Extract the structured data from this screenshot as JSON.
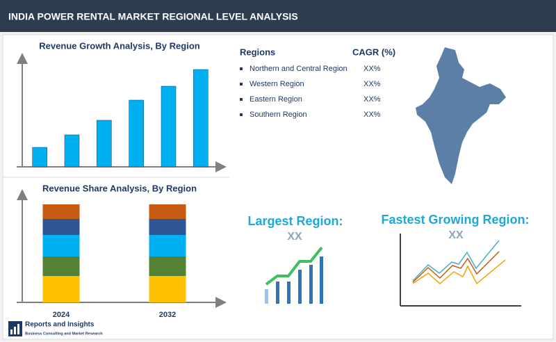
{
  "header": {
    "title": "INDIA POWER RENTAL MARKET REGIONAL LEVEL ANALYSIS"
  },
  "chart_data": [
    {
      "type": "bar",
      "title": "Revenue Growth Analysis, By Region",
      "values": [
        28,
        46,
        67,
        96,
        116,
        140
      ],
      "color": "#00b0f0",
      "ylim": [
        0,
        150
      ]
    },
    {
      "type": "stacked-bar",
      "title": "Revenue Share Analysis, By Region",
      "categories": [
        "2024",
        "2032"
      ],
      "series": [
        {
          "color": "#ffc000",
          "values": [
            38,
            38
          ]
        },
        {
          "color": "#548235",
          "values": [
            28,
            28
          ]
        },
        {
          "color": "#00b0f0",
          "values": [
            31,
            31
          ]
        },
        {
          "color": "#2f5597",
          "values": [
            23,
            23
          ]
        },
        {
          "color": "#c55a11",
          "values": [
            21,
            21
          ]
        }
      ],
      "ylim": [
        0,
        141
      ]
    }
  ],
  "regions_table": {
    "headers": [
      "Regions",
      "CAGR (%)"
    ],
    "rows": [
      [
        "Northern and Central Region",
        "XX%"
      ],
      [
        "Western Region",
        "XX%"
      ],
      [
        "Eastern Region",
        "XX%"
      ],
      [
        "Southern Region",
        "XX%"
      ]
    ]
  },
  "largest_region": {
    "title": "Largest Region:",
    "value": "XX"
  },
  "fastest_growing_region": {
    "title": "Fastest Growing Region:",
    "value": "XX"
  },
  "logo": {
    "name": "Reports and Insights",
    "tagline": "Business Consulting and Market Research"
  }
}
